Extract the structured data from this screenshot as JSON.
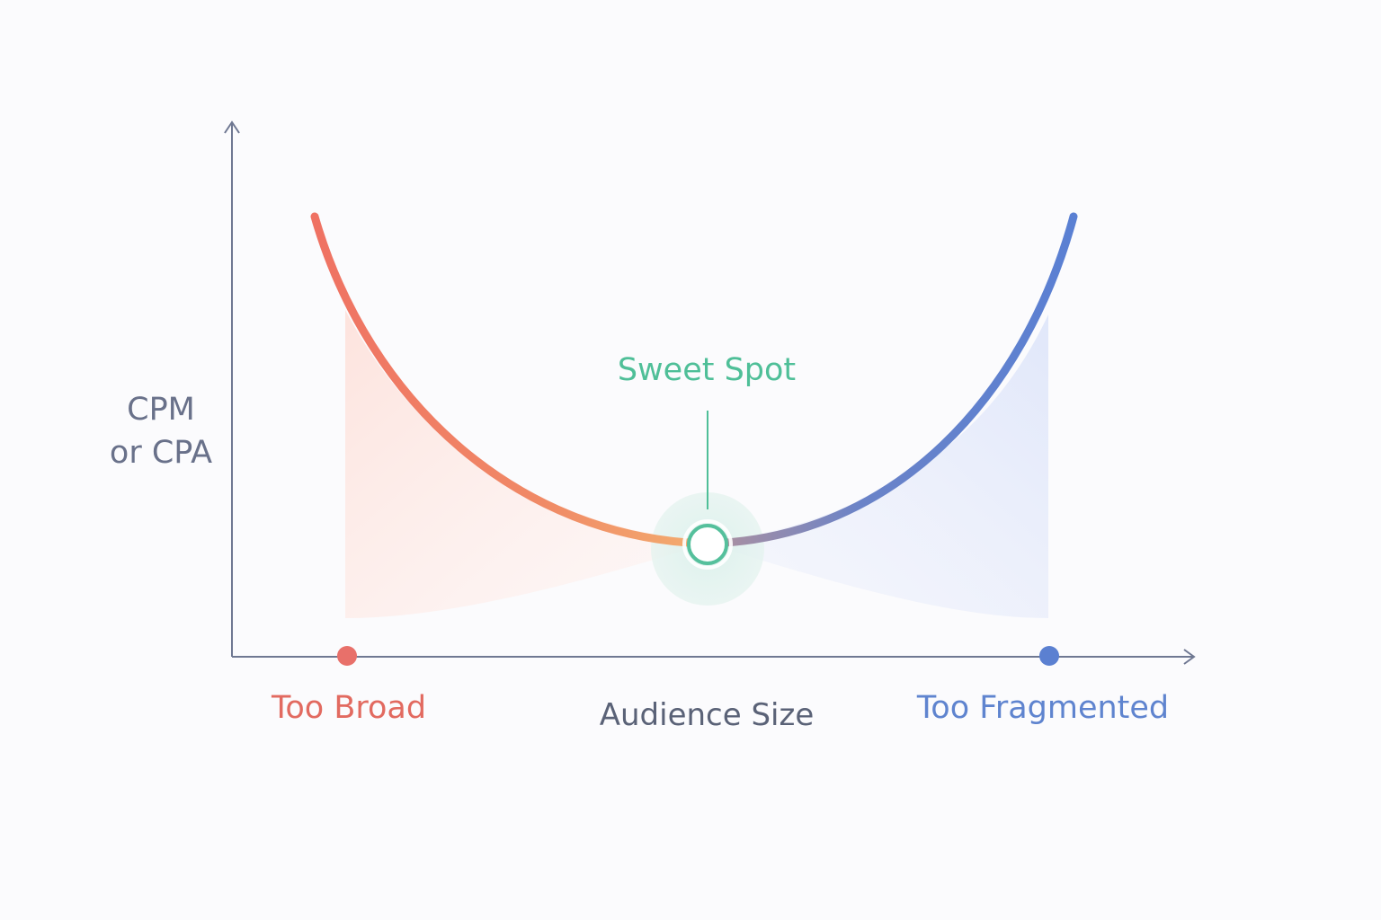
{
  "y_axis_label": [
    "CPM",
    "or CPA"
  ],
  "x_axis_label": "Audience Size",
  "callout_label": "Sweet Spot",
  "left_extreme_label": "Too Broad",
  "right_extreme_label": "Too Fragmented",
  "colors": {
    "left": "#ef7a68",
    "mid": "#f2a36a",
    "right": "#5c80d1",
    "accent": "#4fbf98",
    "axis": "#6f7892",
    "background": "#fbfbfd"
  }
}
